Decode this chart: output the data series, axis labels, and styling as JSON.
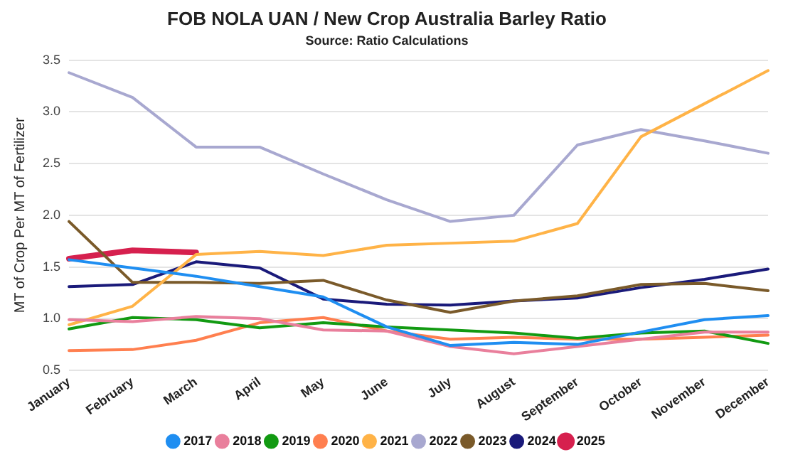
{
  "chart_data": {
    "type": "line",
    "title": "FOB NOLA UAN / New Crop Australia Barley Ratio",
    "subtitle": "Source: Ratio Calculations",
    "ylabel": "MT of Crop Per MT of Fertilizer",
    "categories": [
      "January",
      "February",
      "March",
      "April",
      "May",
      "June",
      "July",
      "August",
      "September",
      "October",
      "November",
      "December"
    ],
    "series": [
      {
        "name": "2017",
        "color": "#1f8ef1",
        "values": [
          1.57,
          1.49,
          1.41,
          1.31,
          1.21,
          0.92,
          0.74,
          0.77,
          0.75,
          0.87,
          0.99,
          1.03
        ]
      },
      {
        "name": "2018",
        "color": "#e97f9c",
        "values": [
          0.99,
          0.97,
          1.02,
          1.0,
          0.89,
          0.88,
          0.73,
          0.66,
          0.73,
          0.8,
          0.87,
          0.87
        ]
      },
      {
        "name": "2019",
        "color": "#129a12",
        "values": [
          0.9,
          1.01,
          0.99,
          0.91,
          0.96,
          0.92,
          0.89,
          0.86,
          0.81,
          0.86,
          0.88,
          0.76
        ]
      },
      {
        "name": "2020",
        "color": "#ff7f4f",
        "values": [
          0.69,
          0.7,
          0.79,
          0.96,
          1.01,
          0.88,
          0.8,
          0.82,
          0.8,
          0.8,
          0.82,
          0.84
        ]
      },
      {
        "name": "2021",
        "color": "#ffb347",
        "values": [
          0.94,
          1.12,
          1.62,
          1.65,
          1.61,
          1.71,
          1.73,
          1.75,
          1.92,
          2.76,
          3.08,
          3.4
        ]
      },
      {
        "name": "2022",
        "color": "#a8a8d0",
        "values": [
          3.38,
          3.14,
          2.66,
          2.66,
          2.4,
          2.15,
          1.94,
          2.0,
          2.68,
          2.83,
          2.72,
          2.6
        ]
      },
      {
        "name": "2023",
        "color": "#7a5a2a",
        "values": [
          1.94,
          1.35,
          1.35,
          1.34,
          1.37,
          1.18,
          1.06,
          1.17,
          1.22,
          1.33,
          1.34,
          1.27
        ]
      },
      {
        "name": "2024",
        "color": "#1a1a7a",
        "values": [
          1.31,
          1.33,
          1.55,
          1.49,
          1.19,
          1.14,
          1.13,
          1.17,
          1.2,
          1.3,
          1.38,
          1.48
        ]
      },
      {
        "name": "2025",
        "color": "#d6204e",
        "values": [
          1.58,
          1.66,
          1.64,
          null,
          null,
          null,
          null,
          null,
          null,
          null,
          null,
          null
        ]
      }
    ],
    "ylim": [
      0.5,
      3.5
    ],
    "yticks": [
      0.5,
      {
        "value": 1,
        "label": "1.0"
      },
      1.5,
      {
        "value": 2,
        "label": "2.0"
      },
      2.5,
      {
        "value": 3,
        "label": "3.0"
      },
      3.5
    ],
    "grid": "y",
    "legend": "bottom",
    "marker": "none",
    "line_style": "solid"
  }
}
